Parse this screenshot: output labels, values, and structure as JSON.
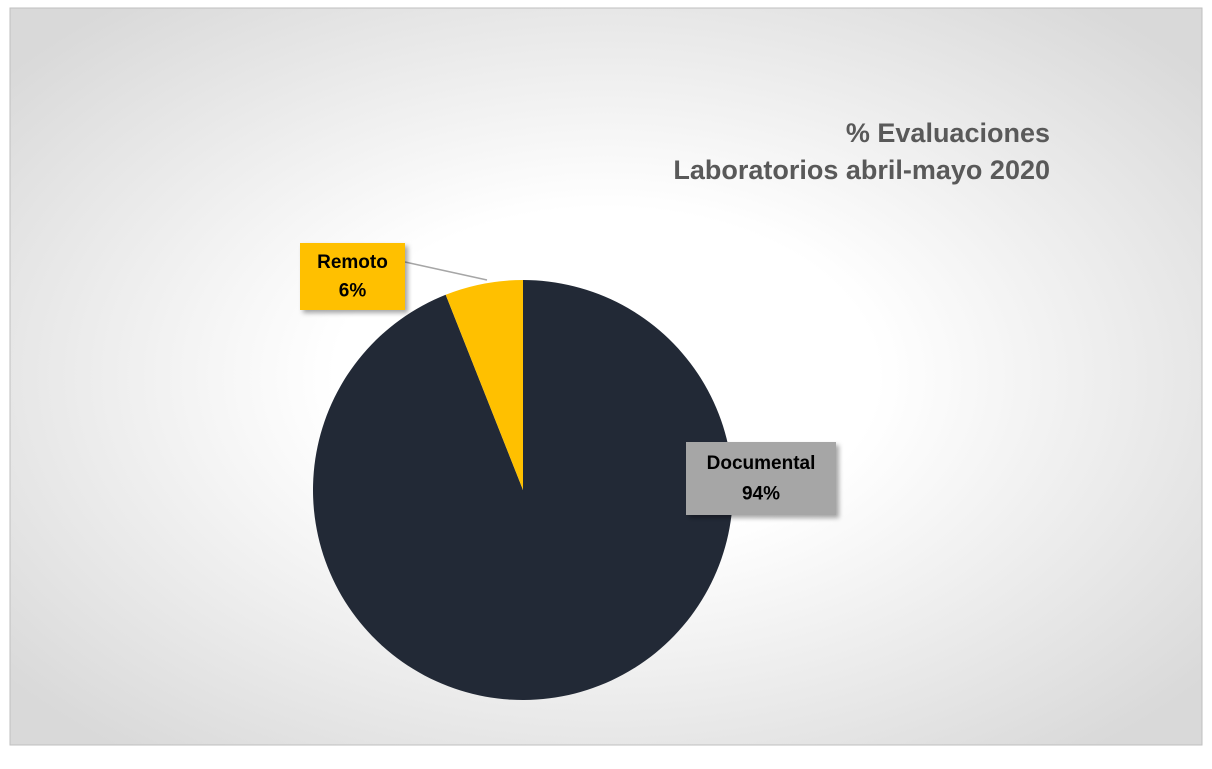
{
  "chart_data": {
    "type": "pie",
    "title": "% Evaluaciones",
    "subtitle": "Laboratorios abril-mayo 2020",
    "categories": [
      "Documental",
      "Remoto"
    ],
    "values": [
      94,
      6
    ],
    "value_labels": [
      "94%",
      "6%"
    ],
    "colors": [
      "#222936",
      "#ffc000"
    ],
    "label_colors": [
      "#a6a6a6",
      "#ffc000"
    ]
  }
}
